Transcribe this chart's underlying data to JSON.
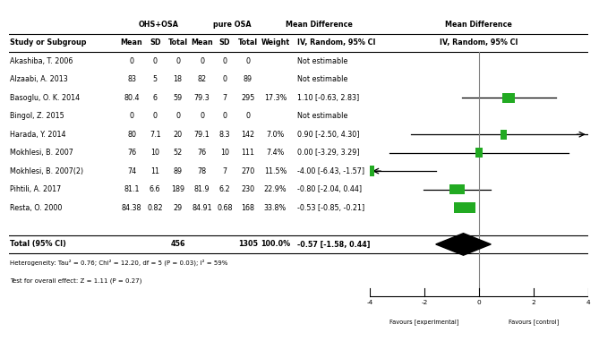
{
  "title_ohs": "OHS+OSA",
  "title_osa": "pure OSA",
  "title_md_left": "Mean Difference",
  "title_md_right": "Mean Difference",
  "studies": [
    {
      "name": "Akashiba, T. 2006",
      "m1": "0",
      "sd1": "0",
      "n1": "0",
      "m2": "0",
      "sd2": "0",
      "n2": "0",
      "weight": "",
      "ci_text": "Not estimable",
      "md": null,
      "lo": null,
      "hi": null
    },
    {
      "name": "Alzaabi, A. 2013",
      "m1": "83",
      "sd1": "5",
      "n1": "18",
      "m2": "82",
      "sd2": "0",
      "n2": "89",
      "weight": "",
      "ci_text": "Not estimable",
      "md": null,
      "lo": null,
      "hi": null
    },
    {
      "name": "Basoglu, O. K. 2014",
      "m1": "80.4",
      "sd1": "6",
      "n1": "59",
      "m2": "79.3",
      "sd2": "7",
      "n2": "295",
      "weight": "17.3%",
      "ci_text": "1.10 [-0.63, 2.83]",
      "md": 1.1,
      "lo": -0.63,
      "hi": 2.83
    },
    {
      "name": "Bingol, Z. 2015",
      "m1": "0",
      "sd1": "0",
      "n1": "0",
      "m2": "0",
      "sd2": "0",
      "n2": "0",
      "weight": "",
      "ci_text": "Not estimable",
      "md": null,
      "lo": null,
      "hi": null
    },
    {
      "name": "Harada, Y. 2014",
      "m1": "80",
      "sd1": "7.1",
      "n1": "20",
      "m2": "79.1",
      "sd2": "8.3",
      "n2": "142",
      "weight": "7.0%",
      "ci_text": "0.90 [-2.50, 4.30]",
      "md": 0.9,
      "lo": -2.5,
      "hi": 4.3
    },
    {
      "name": "Mokhlesi, B. 2007",
      "m1": "76",
      "sd1": "10",
      "n1": "52",
      "m2": "76",
      "sd2": "10",
      "n2": "111",
      "weight": "7.4%",
      "ci_text": "0.00 [-3.29, 3.29]",
      "md": 0.0,
      "lo": -3.29,
      "hi": 3.29
    },
    {
      "name": "Mokhlesi, B. 2007(2)",
      "m1": "74",
      "sd1": "11",
      "n1": "89",
      "m2": "78",
      "sd2": "7",
      "n2": "270",
      "weight": "11.5%",
      "ci_text": "-4.00 [-6.43, -1.57]",
      "md": -4.0,
      "lo": -6.43,
      "hi": -1.57,
      "arrow_left": true
    },
    {
      "name": "Pihtili, A. 2017",
      "m1": "81.1",
      "sd1": "6.6",
      "n1": "189",
      "m2": "81.9",
      "sd2": "6.2",
      "n2": "230",
      "weight": "22.9%",
      "ci_text": "-0.80 [-2.04, 0.44]",
      "md": -0.8,
      "lo": -2.04,
      "hi": 0.44
    },
    {
      "name": "Resta, O. 2000",
      "m1": "84.38",
      "sd1": "0.82",
      "n1": "29",
      "m2": "84.91",
      "sd2": "0.68",
      "n2": "168",
      "weight": "33.8%",
      "ci_text": "-0.53 [-0.85, -0.21]",
      "md": -0.53,
      "lo": -0.85,
      "hi": -0.21
    }
  ],
  "total_n1": "456",
  "total_n2": "1305",
  "total_weight": "100.0%",
  "total_ci_text": "-0.57 [-1.58, 0.44]",
  "total_md": -0.57,
  "total_lo": -1.58,
  "total_hi": 0.44,
  "heterogeneity_text": "Heterogeneity: Tau² = 0.76; Chi² = 12.20, df = 5 (P = 0.03); I² = 59%",
  "overall_effect_text": "Test for overall effect: Z = 1.11 (P = 0.27)",
  "x_min": -4,
  "x_max": 4,
  "x_ticks": [
    -4,
    -2,
    0,
    2,
    4
  ],
  "favor_left": "Favours [experimental]",
  "favor_right": "Favours [control]",
  "square_color": "#22aa22",
  "line_color": "#000000",
  "diamond_color": "#000000",
  "vline_color": "#808080",
  "bg_color": "#ffffff",
  "weights_numeric": [
    17.3,
    7.0,
    7.4,
    11.5,
    22.9,
    33.8
  ]
}
